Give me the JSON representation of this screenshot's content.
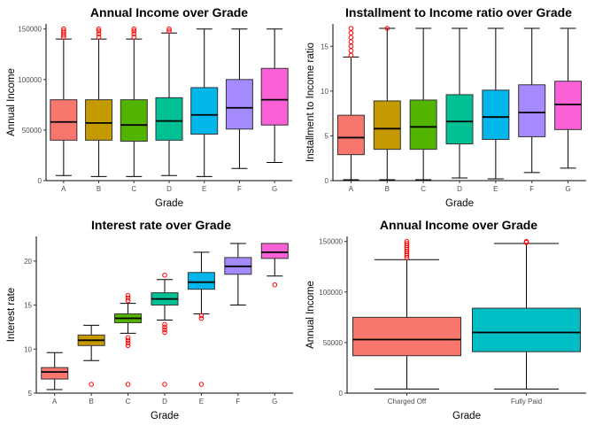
{
  "chart_data": [
    {
      "type": "boxplot",
      "title": "Annual Income over Grade",
      "xlabel": "Grade",
      "ylabel": "Annual Income",
      "categories": [
        "A",
        "B",
        "C",
        "D",
        "E",
        "F",
        "G"
      ],
      "ylim": [
        0,
        155000
      ],
      "yticks": [
        0,
        50000,
        100000,
        150000
      ],
      "colors": [
        "#F8766D",
        "#C49A00",
        "#53B400",
        "#00C094",
        "#00B6EB",
        "#A58AFF",
        "#FB61D7"
      ],
      "boxes": [
        {
          "whisker_low": 5000,
          "q1": 40000,
          "median": 58000,
          "q3": 80000,
          "whisker_high": 140000,
          "outliers": [
            142000,
            144000,
            146000,
            148000,
            150000
          ]
        },
        {
          "whisker_low": 4000,
          "q1": 40000,
          "median": 57000,
          "q3": 80000,
          "whisker_high": 140000,
          "outliers": [
            142000,
            145000,
            148000,
            150000
          ]
        },
        {
          "whisker_low": 4000,
          "q1": 39000,
          "median": 55000,
          "q3": 80000,
          "whisker_high": 140000,
          "outliers": [
            142000,
            145000,
            148000,
            150000
          ]
        },
        {
          "whisker_low": 5000,
          "q1": 40000,
          "median": 59000,
          "q3": 82000,
          "whisker_high": 146000,
          "outliers": [
            148000,
            150000
          ]
        },
        {
          "whisker_low": 4000,
          "q1": 46000,
          "median": 65000,
          "q3": 92000,
          "whisker_high": 150000,
          "outliers": []
        },
        {
          "whisker_low": 12000,
          "q1": 51000,
          "median": 72000,
          "q3": 100000,
          "whisker_high": 150000,
          "outliers": []
        },
        {
          "whisker_low": 18000,
          "q1": 55000,
          "median": 80000,
          "q3": 111000,
          "whisker_high": 150000,
          "outliers": []
        }
      ]
    },
    {
      "type": "boxplot",
      "title": "Installment to Income ratio over Grade",
      "xlabel": "Grade",
      "ylabel": "Installment to Income ratio",
      "categories": [
        "A",
        "B",
        "C",
        "D",
        "E",
        "F",
        "G"
      ],
      "ylim": [
        0,
        17.5
      ],
      "yticks": [
        0,
        5,
        10,
        15
      ],
      "colors": [
        "#F8766D",
        "#C49A00",
        "#53B400",
        "#00C094",
        "#00B6EB",
        "#A58AFF",
        "#FB61D7"
      ],
      "boxes": [
        {
          "whisker_low": 0.1,
          "q1": 2.9,
          "median": 4.8,
          "q3": 7.3,
          "whisker_high": 13.8,
          "outliers": [
            14.0,
            14.5,
            15.0,
            15.5,
            16.0,
            16.5,
            17.0
          ]
        },
        {
          "whisker_low": 0.1,
          "q1": 3.5,
          "median": 5.8,
          "q3": 8.9,
          "whisker_high": 17.0,
          "outliers": [
            17.0
          ]
        },
        {
          "whisker_low": 0.1,
          "q1": 3.5,
          "median": 6.0,
          "q3": 9.0,
          "whisker_high": 17.0,
          "outliers": []
        },
        {
          "whisker_low": 0.3,
          "q1": 4.1,
          "median": 6.6,
          "q3": 9.6,
          "whisker_high": 17.0,
          "outliers": []
        },
        {
          "whisker_low": 0.2,
          "q1": 4.6,
          "median": 7.1,
          "q3": 10.1,
          "whisker_high": 17.0,
          "outliers": []
        },
        {
          "whisker_low": 0.9,
          "q1": 4.9,
          "median": 7.6,
          "q3": 10.7,
          "whisker_high": 17.0,
          "outliers": []
        },
        {
          "whisker_low": 1.4,
          "q1": 5.7,
          "median": 8.5,
          "q3": 11.1,
          "whisker_high": 17.0,
          "outliers": []
        }
      ]
    },
    {
      "type": "boxplot",
      "title": "Interest rate over Grade",
      "xlabel": "Grade",
      "ylabel": "Interest rate",
      "categories": [
        "A",
        "B",
        "C",
        "D",
        "E",
        "F",
        "G"
      ],
      "ylim": [
        5,
        22.8
      ],
      "yticks": [
        5,
        10,
        15,
        20
      ],
      "colors": [
        "#F8766D",
        "#C49A00",
        "#53B400",
        "#00C094",
        "#00B6EB",
        "#A58AFF",
        "#FB61D7"
      ],
      "boxes": [
        {
          "whisker_low": 5.4,
          "q1": 6.6,
          "median": 7.4,
          "q3": 7.9,
          "whisker_high": 9.6,
          "outliers": []
        },
        {
          "whisker_low": 8.7,
          "q1": 10.4,
          "median": 11.0,
          "q3": 11.6,
          "whisker_high": 12.7,
          "outliers": [
            6.0
          ]
        },
        {
          "whisker_low": 11.8,
          "q1": 13.0,
          "median": 13.5,
          "q3": 14.0,
          "whisker_high": 15.2,
          "outliers": [
            6.0,
            10.4,
            10.7,
            11.0,
            11.3,
            15.5,
            15.8,
            16.1
          ]
        },
        {
          "whisker_low": 13.3,
          "q1": 15.0,
          "median": 15.7,
          "q3": 16.4,
          "whisker_high": 17.9,
          "outliers": [
            6.0,
            11.9,
            12.2,
            12.5,
            12.8,
            18.4
          ]
        },
        {
          "whisker_low": 14.0,
          "q1": 16.8,
          "median": 17.6,
          "q3": 18.7,
          "whisker_high": 21.0,
          "outliers": [
            6.0,
            13.5,
            13.8
          ]
        },
        {
          "whisker_low": 15.0,
          "q1": 18.5,
          "median": 19.4,
          "q3": 20.4,
          "whisker_high": 22.0,
          "outliers": []
        },
        {
          "whisker_low": 18.3,
          "q1": 20.3,
          "median": 21.0,
          "q3": 22.0,
          "whisker_high": 22.0,
          "outliers": [
            17.3
          ]
        }
      ]
    },
    {
      "type": "boxplot",
      "title": "Annual Income over Grade",
      "xlabel": "Grade",
      "ylabel": "Annual Income",
      "categories": [
        "Charged Off",
        "Fully Paid"
      ],
      "ylim": [
        0,
        155000
      ],
      "yticks": [
        0,
        50000,
        100000,
        150000
      ],
      "colors": [
        "#F8766D",
        "#00BFC4"
      ],
      "boxes": [
        {
          "whisker_low": 4000,
          "q1": 37000,
          "median": 53000,
          "q3": 75000,
          "whisker_high": 132000,
          "outliers": [
            134000,
            136000,
            138000,
            140000,
            142000,
            144000,
            146000,
            148000,
            150000
          ]
        },
        {
          "whisker_low": 4000,
          "q1": 41000,
          "median": 60000,
          "q3": 84000,
          "whisker_high": 148000,
          "outliers": [
            149000,
            150000
          ]
        }
      ]
    }
  ]
}
